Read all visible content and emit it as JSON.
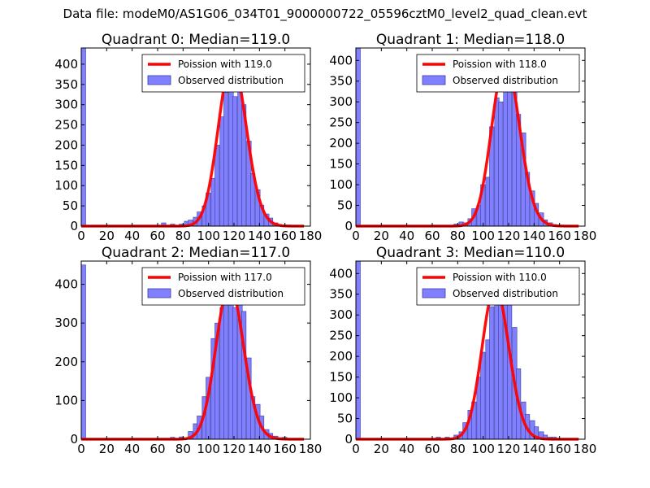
{
  "figure_title": "Data file: modeM0/AS1G06_034T01_9000000722_05596cztM0_level2_quad_clean.evt",
  "colors": {
    "bar_fill": "#8080ff",
    "bar_edge": "#3a3aa6",
    "curve": "#ff0000",
    "axis": "#000000"
  },
  "chart_data": [
    {
      "type": "bar",
      "title": "Quadrant 0: Median=119.0",
      "xlim": [
        0,
        180
      ],
      "ylim": [
        0,
        440
      ],
      "xticks": [
        "0",
        "20",
        "40",
        "60",
        "80",
        "100",
        "120",
        "140",
        "160",
        "180"
      ],
      "yticks": [
        "0",
        "50",
        "100",
        "150",
        "200",
        "250",
        "300",
        "350",
        "400"
      ],
      "bin_width": 3.5,
      "bins": [
        [
          0,
          440
        ],
        [
          63,
          8
        ],
        [
          70,
          5
        ],
        [
          77,
          5
        ],
        [
          81,
          12
        ],
        [
          84,
          15
        ],
        [
          88,
          22
        ],
        [
          91,
          35
        ],
        [
          95,
          50
        ],
        [
          98,
          82
        ],
        [
          102,
          118
        ],
        [
          105,
          200
        ],
        [
          109,
          270
        ],
        [
          112,
          330
        ],
        [
          116,
          400
        ],
        [
          119,
          320
        ],
        [
          123,
          370
        ],
        [
          126,
          300
        ],
        [
          130,
          210
        ],
        [
          133,
          130
        ],
        [
          137,
          90
        ],
        [
          140,
          52
        ],
        [
          144,
          30
        ],
        [
          147,
          20
        ],
        [
          151,
          8
        ],
        [
          154,
          4
        ]
      ],
      "curve_mu": 119.0,
      "legend": [
        "Poission with 119.0",
        "Observed distribution"
      ]
    },
    {
      "type": "bar",
      "title": "Quadrant 1: Median=118.0",
      "xlim": [
        0,
        180
      ],
      "ylim": [
        0,
        430
      ],
      "xticks": [
        "0",
        "20",
        "40",
        "60",
        "80",
        "100",
        "120",
        "140",
        "160",
        "180"
      ],
      "yticks": [
        "0",
        "50",
        "100",
        "150",
        "200",
        "250",
        "300",
        "350",
        "400"
      ],
      "bin_width": 3.5,
      "bins": [
        [
          0,
          430
        ],
        [
          77,
          5
        ],
        [
          81,
          10
        ],
        [
          84,
          8
        ],
        [
          88,
          18
        ],
        [
          91,
          42
        ],
        [
          95,
          50
        ],
        [
          98,
          100
        ],
        [
          102,
          118
        ],
        [
          105,
          240
        ],
        [
          109,
          310
        ],
        [
          112,
          300
        ],
        [
          116,
          390
        ],
        [
          119,
          390
        ],
        [
          123,
          350
        ],
        [
          126,
          270
        ],
        [
          130,
          225
        ],
        [
          133,
          130
        ],
        [
          137,
          85
        ],
        [
          140,
          55
        ],
        [
          144,
          32
        ],
        [
          147,
          15
        ],
        [
          151,
          8
        ],
        [
          154,
          4
        ]
      ],
      "curve_mu": 118.0,
      "legend": [
        "Poission with 118.0",
        "Observed distribution"
      ]
    },
    {
      "type": "bar",
      "title": "Quadrant 2: Median=117.0",
      "xlim": [
        0,
        180
      ],
      "ylim": [
        0,
        460
      ],
      "xticks": [
        "0",
        "20",
        "40",
        "60",
        "80",
        "100",
        "120",
        "140",
        "160",
        "180"
      ],
      "yticks": [
        "0",
        "100",
        "200",
        "300",
        "400"
      ],
      "bin_width": 3.5,
      "bins": [
        [
          0,
          450
        ],
        [
          70,
          5
        ],
        [
          77,
          6
        ],
        [
          84,
          20
        ],
        [
          88,
          40
        ],
        [
          91,
          60
        ],
        [
          95,
          110
        ],
        [
          98,
          160
        ],
        [
          102,
          260
        ],
        [
          105,
          300
        ],
        [
          109,
          340
        ],
        [
          112,
          360
        ],
        [
          116,
          390
        ],
        [
          119,
          340
        ],
        [
          123,
          350
        ],
        [
          126,
          330
        ],
        [
          130,
          210
        ],
        [
          133,
          110
        ],
        [
          137,
          90
        ],
        [
          140,
          60
        ],
        [
          144,
          25
        ],
        [
          147,
          15
        ],
        [
          151,
          8
        ],
        [
          154,
          4
        ],
        [
          158,
          5
        ]
      ],
      "curve_mu": 117.0,
      "legend": [
        "Poission with 117.0",
        "Observed distribution"
      ]
    },
    {
      "type": "bar",
      "title": "Quadrant 3: Median=110.0",
      "xlim": [
        0,
        180
      ],
      "ylim": [
        0,
        430
      ],
      "xticks": [
        "0",
        "20",
        "40",
        "60",
        "80",
        "100",
        "120",
        "140",
        "160",
        "180"
      ],
      "yticks": [
        "0",
        "50",
        "100",
        "150",
        "200",
        "250",
        "300",
        "350",
        "400"
      ],
      "bin_width": 3.5,
      "bins": [
        [
          0,
          430
        ],
        [
          63,
          5
        ],
        [
          70,
          5
        ],
        [
          77,
          10
        ],
        [
          81,
          18
        ],
        [
          84,
          40
        ],
        [
          88,
          70
        ],
        [
          91,
          90
        ],
        [
          95,
          150
        ],
        [
          98,
          210
        ],
        [
          102,
          240
        ],
        [
          105,
          320
        ],
        [
          109,
          340
        ],
        [
          112,
          350
        ],
        [
          116,
          360
        ],
        [
          119,
          330
        ],
        [
          123,
          270
        ],
        [
          126,
          170
        ],
        [
          130,
          90
        ],
        [
          133,
          60
        ],
        [
          137,
          45
        ],
        [
          140,
          30
        ],
        [
          144,
          18
        ],
        [
          147,
          10
        ],
        [
          151,
          5
        ],
        [
          154,
          5
        ]
      ],
      "curve_mu": 110.0,
      "legend": [
        "Poission with 110.0",
        "Observed distribution"
      ]
    }
  ]
}
